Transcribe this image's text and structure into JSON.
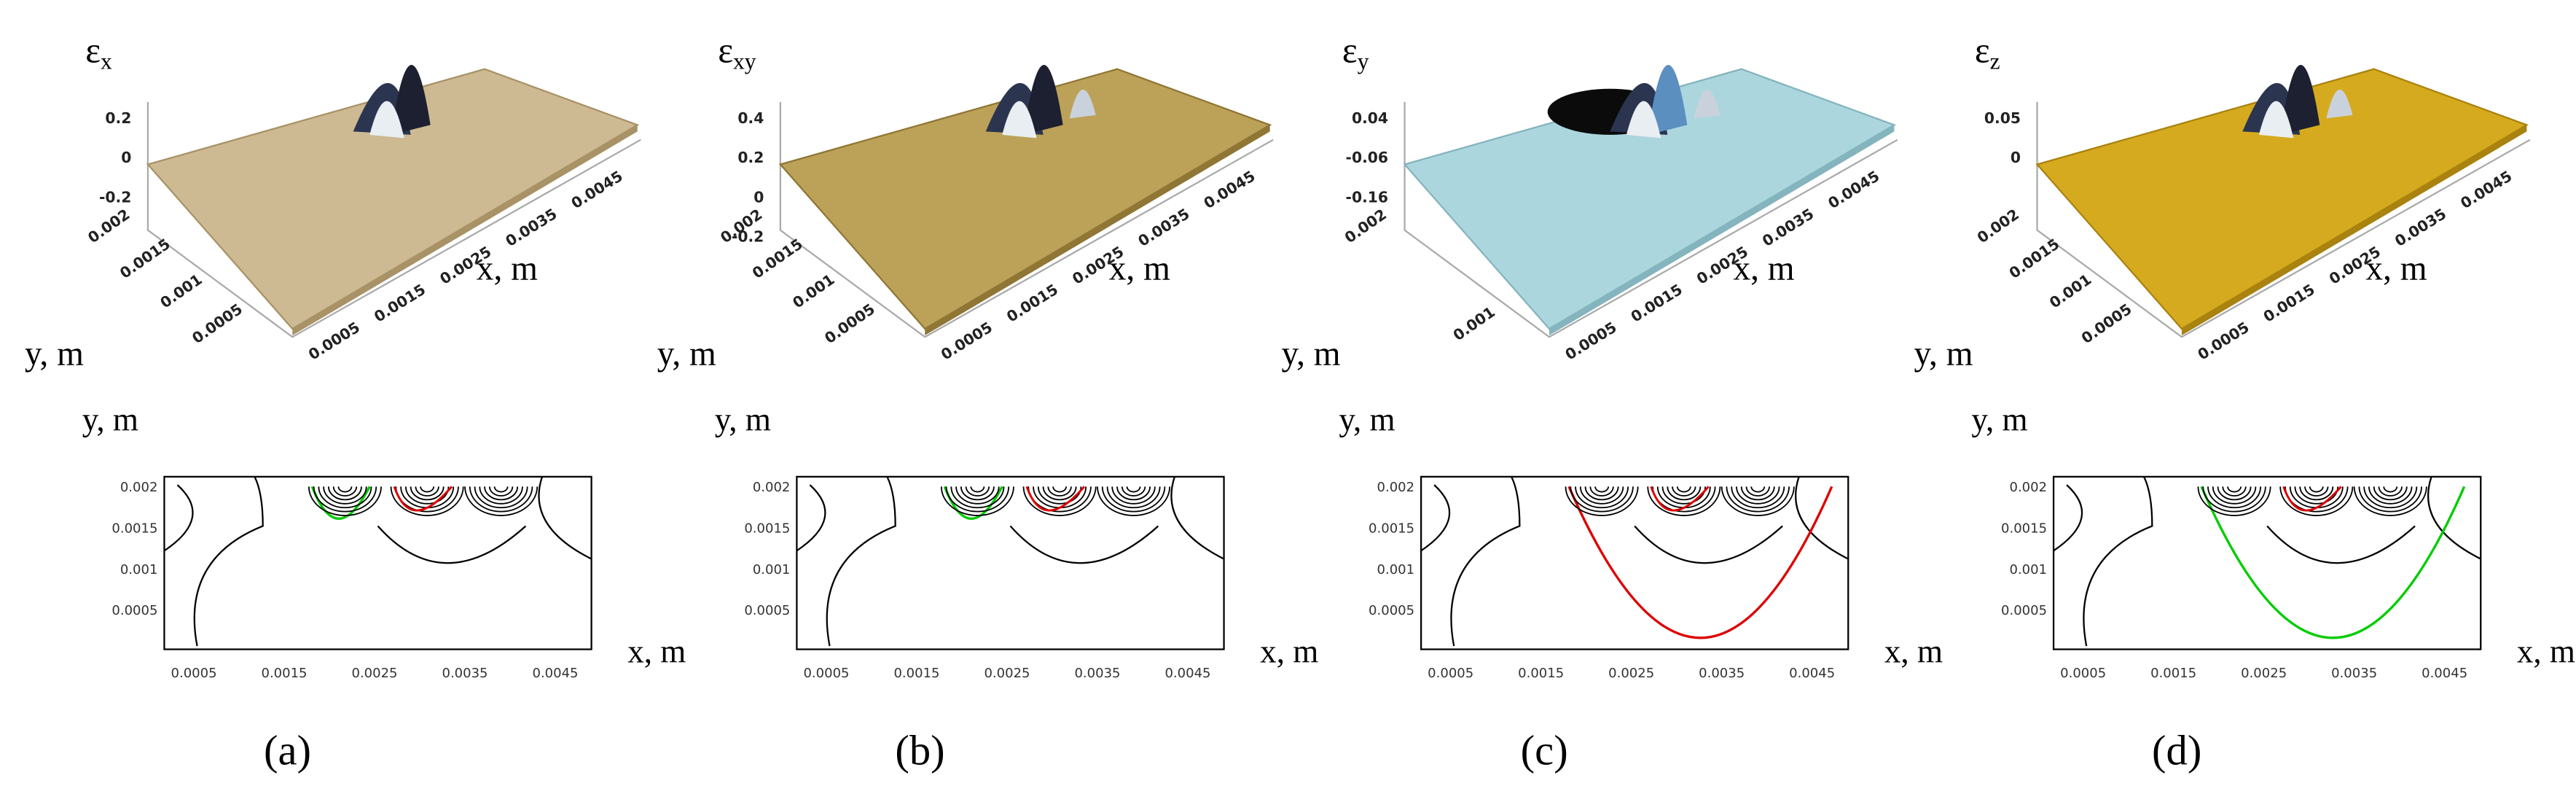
{
  "panels": [
    {
      "label": "(a)",
      "surface": {
        "z_label": {
          "symbol": "ε",
          "sub": "x"
        },
        "z_ticks": [
          "0.2",
          "0",
          "-0.2"
        ],
        "y_ticks": [
          "0.002",
          "0.0015",
          "0.001",
          "0.0005"
        ],
        "x_ticks": [
          "0.0005",
          "0.0015",
          "0.0025",
          "0.0035",
          "0.0045"
        ],
        "x_label": "x, m",
        "y_label": "y, m"
      },
      "contour": {
        "y_label": "y, m",
        "x_label": "x, m",
        "y_ticks": [
          "0.002",
          "0.0015",
          "0.001",
          "0.0005"
        ],
        "x_ticks": [
          "0.0005",
          "0.0015",
          "0.0025",
          "0.0035",
          "0.0045"
        ]
      }
    },
    {
      "label": "(b)",
      "surface": {
        "z_label": {
          "symbol": "ε",
          "sub": "xy"
        },
        "z_ticks": [
          "0.4",
          "0.2",
          "0",
          "-0.2"
        ],
        "y_ticks": [
          "0.002",
          "0.0015",
          "0.001",
          "0.0005"
        ],
        "x_ticks": [
          "0.0005",
          "0.0015",
          "0.0025",
          "0.0035",
          "0.0045"
        ],
        "x_label": "x, m",
        "y_label": "y, m"
      },
      "contour": {
        "y_label": "y, m",
        "x_label": "x, m",
        "y_ticks": [
          "0.002",
          "0.0015",
          "0.001",
          "0.0005"
        ],
        "x_ticks": [
          "0.0005",
          "0.0015",
          "0.0025",
          "0.0035",
          "0.0045"
        ]
      }
    },
    {
      "label": "(c)",
      "surface": {
        "z_label": {
          "symbol": "ε",
          "sub": "y"
        },
        "z_ticks": [
          "0.04",
          "-0.06",
          "-0.16"
        ],
        "y_ticks": [
          "0.002",
          "0.001"
        ],
        "x_ticks": [
          "0.0005",
          "0.0015",
          "0.0025",
          "0.0035",
          "0.0045"
        ],
        "x_label": "x, m",
        "y_label": "y, m"
      },
      "contour": {
        "y_label": "y, m",
        "x_label": "x, m",
        "y_ticks": [
          "0.002",
          "0.0015",
          "0.001",
          "0.0005"
        ],
        "x_ticks": [
          "0.0005",
          "0.0015",
          "0.0025",
          "0.0035",
          "0.0045"
        ]
      }
    },
    {
      "label": "(d)",
      "surface": {
        "z_label": {
          "symbol": "ε",
          "sub": "z"
        },
        "z_ticks": [
          "0.05",
          "0"
        ],
        "y_ticks": [
          "0.002",
          "0.0015",
          "0.001",
          "0.0005"
        ],
        "x_ticks": [
          "0.0005",
          "0.0015",
          "0.0025",
          "0.0035",
          "0.0045"
        ],
        "x_label": "x, m",
        "y_label": "y, m"
      },
      "contour": {
        "y_label": "y, m",
        "x_label": "x, m",
        "y_ticks": [
          "0.002",
          "0.0015",
          "0.001",
          "0.0005"
        ],
        "x_ticks": [
          "0.0005",
          "0.0015",
          "0.0025",
          "0.0035",
          "0.0045"
        ]
      }
    }
  ]
}
